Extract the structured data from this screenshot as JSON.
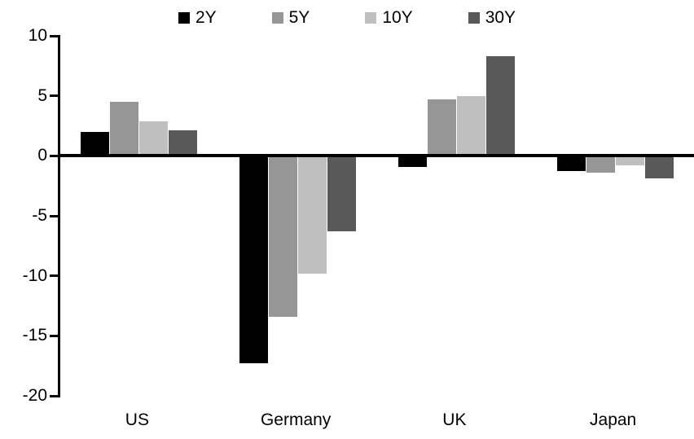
{
  "chart_data": {
    "type": "bar",
    "title": "",
    "categories": [
      "US",
      "Germany",
      "UK",
      "Japan"
    ],
    "series": [
      {
        "name": "2Y",
        "color": "#000000",
        "values": [
          2.0,
          -17.3,
          -0.9,
          -1.3
        ]
      },
      {
        "name": "5Y",
        "color": "#969696",
        "values": [
          4.5,
          -13.4,
          4.7,
          -1.4
        ]
      },
      {
        "name": "10Y",
        "color": "#BFBFBF",
        "values": [
          2.9,
          -9.8,
          5.0,
          -0.8
        ]
      },
      {
        "name": "30Y",
        "color": "#595959",
        "values": [
          2.1,
          -6.3,
          8.3,
          -1.9
        ]
      }
    ],
    "y_axis": {
      "min": -20,
      "max": 10,
      "step": 5,
      "tick_labels": [
        "10",
        "5",
        "0",
        "-5",
        "-10",
        "-15",
        "-20"
      ],
      "tick_values": [
        10,
        5,
        0,
        -5,
        -10,
        -15,
        -20
      ]
    },
    "legend_position": "top",
    "grid": false,
    "xlabel": "",
    "ylabel": ""
  },
  "colors": {
    "axis": "#000000",
    "background": "#FFFFFF"
  }
}
